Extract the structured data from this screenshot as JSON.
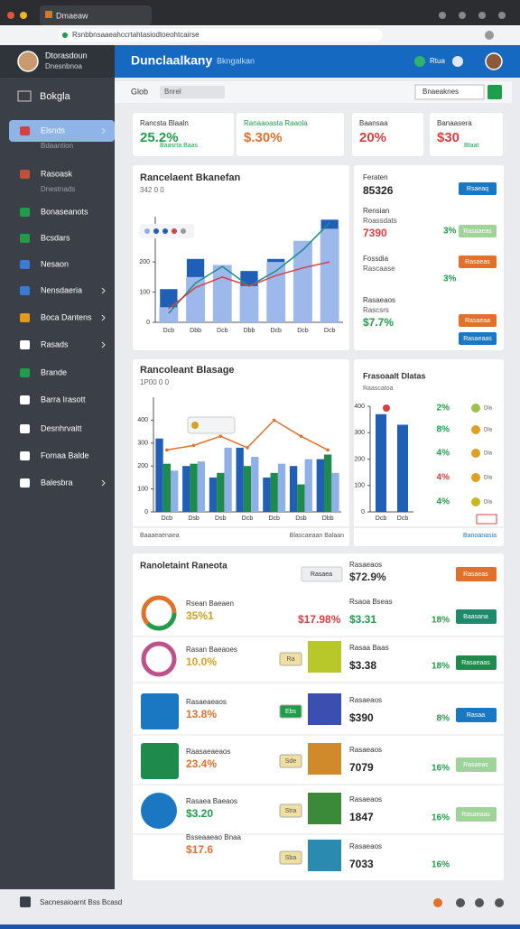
{
  "browser": {
    "tab": "Dmaeaw",
    "url": "Rsnbbnsaaeahccrtahtasiodtoeohtcairse"
  },
  "header": {
    "title": "Dunclaalkany",
    "subtitle": "Bkngalkan",
    "user_label": "Rtua"
  },
  "user": {
    "name": "Dtorasdoun",
    "role": "Dnesnbnoa"
  },
  "sidebar": {
    "search": "Bokgla",
    "items": [
      {
        "label": "Elsnds",
        "sub": "Bdaantion"
      },
      {
        "label": "Rasoask",
        "sub": "Dnestnads"
      },
      {
        "label": "Bonaseanots"
      },
      {
        "label": "Bcsdars"
      },
      {
        "label": "Nesaon"
      },
      {
        "label": "Nensdaeria"
      },
      {
        "label": "Boca Dantens"
      },
      {
        "label": "Rasads"
      },
      {
        "label": "Brande"
      },
      {
        "label": "Barra Irasott"
      },
      {
        "label": "Desnhrvaitt"
      },
      {
        "label": "Fomaa Balde"
      },
      {
        "label": "Balesbra"
      }
    ]
  },
  "toolbar": {
    "label": "Glob",
    "search": "Bnrel",
    "select": "Bnaeaknes"
  },
  "stats": [
    {
      "label": "Rancsta Blaaln",
      "value": "25.2%",
      "note": "Baasrta Baas"
    },
    {
      "label": "Ranaaoasta Raaola",
      "value": "$.30%"
    },
    {
      "label": "Baansaa",
      "value": "20%"
    },
    {
      "label": "Banaasera",
      "value": "$30",
      "note": "Btaat"
    }
  ],
  "chart1": {
    "title": "Rancelaent Bkanefan",
    "subtitle": "342 0 0",
    "ylim": [
      0,
      350
    ],
    "yticks": [
      0,
      100,
      200,
      300
    ],
    "categories": [
      "Dcb",
      "Dbb",
      "Dcb",
      "Dbb",
      "Dcb",
      "Dcb",
      "Dcb"
    ],
    "bars": [
      {
        "color": "#1f5fb8",
        "values": [
          110,
          210,
          130,
          170,
          210,
          210,
          340
        ]
      },
      {
        "color": "#9db8ea",
        "values": [
          50,
          150,
          190,
          120,
          200,
          270,
          310
        ]
      }
    ],
    "lines": [
      {
        "color": "#1a8c8c",
        "values": [
          30,
          130,
          185,
          120,
          170,
          240,
          330
        ]
      },
      {
        "color": "#d84040",
        "values": [
          45,
          115,
          150,
          120,
          155,
          180,
          200
        ]
      }
    ]
  },
  "panel1": {
    "rows": [
      {
        "label": "Feraten",
        "value": "85326",
        "button": "Rsaeaq"
      },
      {
        "label": "Rensian",
        "sub": "Roassdats",
        "value": "7390",
        "percent": "3%",
        "button": "Rasaaeas"
      },
      {
        "label": "Fossdia",
        "sub": "Rascaase",
        "percent": "3%",
        "button": "Rasaeas"
      },
      {
        "label": "Rasaeaos",
        "sub": "Rascsrs",
        "value": "$7.7%",
        "button": "Rasaeaa"
      }
    ],
    "button": "Rasaeaas"
  },
  "chart2": {
    "title": "Rancoleant Blasage",
    "subtitle": "1P00 0 0",
    "ylim": [
      0,
      500
    ],
    "yticks": [
      0,
      100,
      200,
      300,
      400
    ],
    "categories": [
      "Dcb",
      "Dsb",
      "Dsb",
      "Dcb",
      "Dcb",
      "Dsb",
      "Dbb"
    ],
    "bars": [
      {
        "color": "#1f5fb8",
        "values": [
          320,
          200,
          150,
          280,
          150,
          200,
          230
        ]
      },
      {
        "color": "#1e8a4c",
        "values": [
          210,
          210,
          170,
          200,
          170,
          120,
          250
        ]
      },
      {
        "color": "#8fb0e6",
        "values": [
          180,
          220,
          280,
          240,
          210,
          230,
          170
        ]
      }
    ],
    "line": {
      "color": "#e0702a",
      "values": [
        270,
        290,
        330,
        280,
        400,
        330,
        270
      ]
    },
    "footer": "Baaaeaenaea",
    "footer_right": "Blascaeaan Balaan"
  },
  "chart3": {
    "title": "Frasoaalt Dlatas",
    "subtitle": "Raascatoa",
    "ylim": [
      0,
      400
    ],
    "yticks": [
      0,
      100,
      200,
      300,
      400
    ],
    "categories": [
      "Dcb",
      "Dcb"
    ],
    "color": "#1f5fb8",
    "values": [
      370,
      330
    ],
    "items": [
      {
        "percent": "2%",
        "label": "Dla"
      },
      {
        "percent": "8%",
        "label": "Dla"
      },
      {
        "percent": "4%",
        "label": "Dla"
      },
      {
        "percent": "4%",
        "label": "Dla"
      },
      {
        "percent": "4%",
        "label": "Dla"
      }
    ],
    "footer": "Banoanasia"
  },
  "list": {
    "title": "Ranoletaint Raneota",
    "button": "Rasaea",
    "side_label": "Rasaeaos",
    "side_value": "$72.9%",
    "side_button": "Rasaeas",
    "rows": [
      {
        "label": "Rsean Baeaen",
        "value": "35%1",
        "mid": "$17.98%",
        "side_label": "Rsaoa Bseas",
        "side_value": "$3.31",
        "percent": "18%",
        "button": "Baasana"
      },
      {
        "label": "Rasan Baeaoes",
        "value": "10.0%",
        "tag": "Ra",
        "side_label": "Rasaa Baas",
        "side_value": "$3.38",
        "percent": "18%",
        "button": "Rasaeaas"
      },
      {
        "label": "Rasaeaeaos",
        "value": "13.8%",
        "tag": "Ebs",
        "side_label": "Rasaeaos",
        "side_value": "$390",
        "percent": "8%",
        "button": "Rasaa"
      },
      {
        "label": "Raasaeaeaos",
        "value": "23.4%",
        "tag": "Sde",
        "side_label": "Rasaeaos",
        "side_value": "7079",
        "percent": "16%",
        "button": "Rasaeas"
      },
      {
        "label": "Rasaea Baeaos",
        "value": "$3.20",
        "tag": "Stra",
        "side_label": "Rasaeaos",
        "side_value": "1847",
        "percent": "16%",
        "button": "Rasaeaas"
      },
      {
        "label": "Bsseaaeao Bnaa",
        "value": "$17.6",
        "tag": "Sba",
        "side_label": "Rasaeaos",
        "side_value": "7033",
        "percent": "16%"
      }
    ]
  },
  "footer": {
    "text": "Sacnesaioarnt Bss Bcasd"
  }
}
